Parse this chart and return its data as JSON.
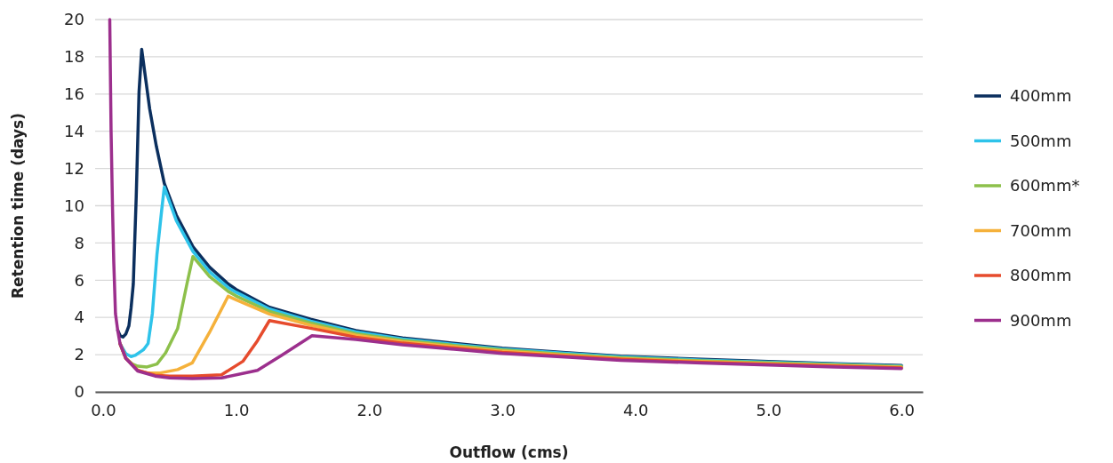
{
  "chart_data": {
    "type": "line",
    "xlabel": "Outflow (cms)",
    "ylabel": "Retention time (days)",
    "xlim": [
      -0.06,
      6.16
    ],
    "ylim": [
      0,
      20
    ],
    "xticks": [
      {
        "value": 0,
        "label": "0.0"
      },
      {
        "value": 1,
        "label": "1.0"
      },
      {
        "value": 2,
        "label": "2.0"
      },
      {
        "value": 3,
        "label": "3.0"
      },
      {
        "value": 4,
        "label": "4.0"
      },
      {
        "value": 5,
        "label": "5.0"
      },
      {
        "value": 6,
        "label": "6.0"
      }
    ],
    "yticks": [
      0,
      2,
      4,
      6,
      8,
      10,
      12,
      14,
      16,
      18,
      20
    ],
    "grid": "y",
    "legend": "right",
    "marker": "none",
    "line_style": "solid",
    "series": [
      {
        "name": "400mm",
        "color": "#0b2f5e",
        "x": [
          0.11,
          0.13,
          0.149,
          0.17,
          0.194,
          0.21,
          0.227,
          0.249,
          0.27,
          0.29,
          0.35,
          0.4,
          0.46,
          0.55,
          0.675,
          0.8,
          0.94,
          1.0,
          1.25,
          1.56,
          1.9,
          2.25,
          2.56,
          3.0,
          3.5,
          3.89,
          4.5,
          5.0,
          5.5,
          6.0
        ],
        "values": [
          3.3,
          3.0,
          2.95,
          3.1,
          3.55,
          4.5,
          5.8,
          10.5,
          16.1,
          18.4,
          15.2,
          13.2,
          11.2,
          9.5,
          7.8,
          6.7,
          5.8,
          5.5,
          4.55,
          3.9,
          3.3,
          2.9,
          2.67,
          2.35,
          2.1,
          1.92,
          1.75,
          1.63,
          1.52,
          1.42
        ]
      },
      {
        "name": "500mm",
        "color": "#2ec3ea",
        "x": [
          0.127,
          0.171,
          0.21,
          0.24,
          0.29,
          0.305,
          0.338,
          0.37,
          0.405,
          0.44,
          0.46,
          0.55,
          0.675,
          0.8,
          0.94,
          1.0,
          1.25,
          1.56,
          1.9,
          2.25,
          2.56,
          3.0,
          3.5,
          3.89,
          4.5,
          5.0,
          5.5,
          6.0
        ],
        "values": [
          2.6,
          2.05,
          1.9,
          1.96,
          2.2,
          2.28,
          2.6,
          4.2,
          7.4,
          9.75,
          11.0,
          9.2,
          7.55,
          6.45,
          5.6,
          5.35,
          4.45,
          3.8,
          3.22,
          2.84,
          2.61,
          2.3,
          2.06,
          1.88,
          1.71,
          1.6,
          1.49,
          1.39
        ]
      },
      {
        "name": "600mm*",
        "color": "#8dc04b",
        "x": [
          0.127,
          0.171,
          0.22,
          0.26,
          0.33,
          0.405,
          0.47,
          0.56,
          0.63,
          0.675,
          0.8,
          0.94,
          1.0,
          1.25,
          1.56,
          1.9,
          2.25,
          2.56,
          3.0,
          3.5,
          3.89,
          4.5,
          5.0,
          5.5,
          6.0
        ],
        "values": [
          2.6,
          1.8,
          1.5,
          1.38,
          1.34,
          1.5,
          2.1,
          3.4,
          5.8,
          7.27,
          6.2,
          5.4,
          5.15,
          4.32,
          3.7,
          3.13,
          2.77,
          2.55,
          2.25,
          2.01,
          1.84,
          1.67,
          1.56,
          1.46,
          1.36
        ]
      },
      {
        "name": "700mm",
        "color": "#f5b13b",
        "x": [
          0.127,
          0.171,
          0.26,
          0.33,
          0.43,
          0.56,
          0.67,
          0.8,
          0.94,
          1.0,
          1.25,
          1.56,
          1.9,
          2.25,
          2.56,
          3.0,
          3.5,
          3.89,
          4.5,
          5.0,
          5.5,
          6.0
        ],
        "values": [
          2.6,
          1.8,
          1.16,
          1.02,
          1.02,
          1.2,
          1.56,
          3.2,
          5.14,
          4.95,
          4.18,
          3.58,
          3.04,
          2.7,
          2.48,
          2.19,
          1.96,
          1.79,
          1.63,
          1.52,
          1.42,
          1.33
        ]
      },
      {
        "name": "800mm",
        "color": "#e64b2d",
        "x": [
          0.127,
          0.171,
          0.26,
          0.39,
          0.5,
          0.67,
          0.89,
          1.05,
          1.16,
          1.25,
          1.56,
          1.9,
          2.25,
          2.56,
          3.0,
          3.5,
          3.89,
          4.5,
          5.0,
          5.5,
          6.0
        ],
        "values": [
          2.6,
          1.8,
          1.16,
          0.9,
          0.85,
          0.85,
          0.92,
          1.64,
          2.75,
          3.83,
          3.42,
          2.94,
          2.62,
          2.41,
          2.13,
          1.91,
          1.75,
          1.59,
          1.48,
          1.38,
          1.29
        ]
      },
      {
        "name": "900mm",
        "color": "#9c2f8d",
        "x": [
          0.05,
          0.06,
          0.071,
          0.08,
          0.093,
          0.11,
          0.127,
          0.171,
          0.26,
          0.39,
          0.5,
          0.67,
          0.89,
          1.16,
          1.34,
          1.57,
          1.9,
          2.25,
          2.56,
          3.0,
          3.5,
          3.89,
          4.5,
          5.0,
          5.5,
          6.0
        ],
        "values": [
          20,
          14,
          9.8,
          7,
          4.2,
          3.3,
          2.6,
          1.8,
          1.12,
          0.85,
          0.75,
          0.72,
          0.75,
          1.16,
          1.96,
          3.02,
          2.82,
          2.53,
          2.34,
          2.07,
          1.86,
          1.7,
          1.55,
          1.44,
          1.34,
          1.25
        ]
      }
    ]
  }
}
